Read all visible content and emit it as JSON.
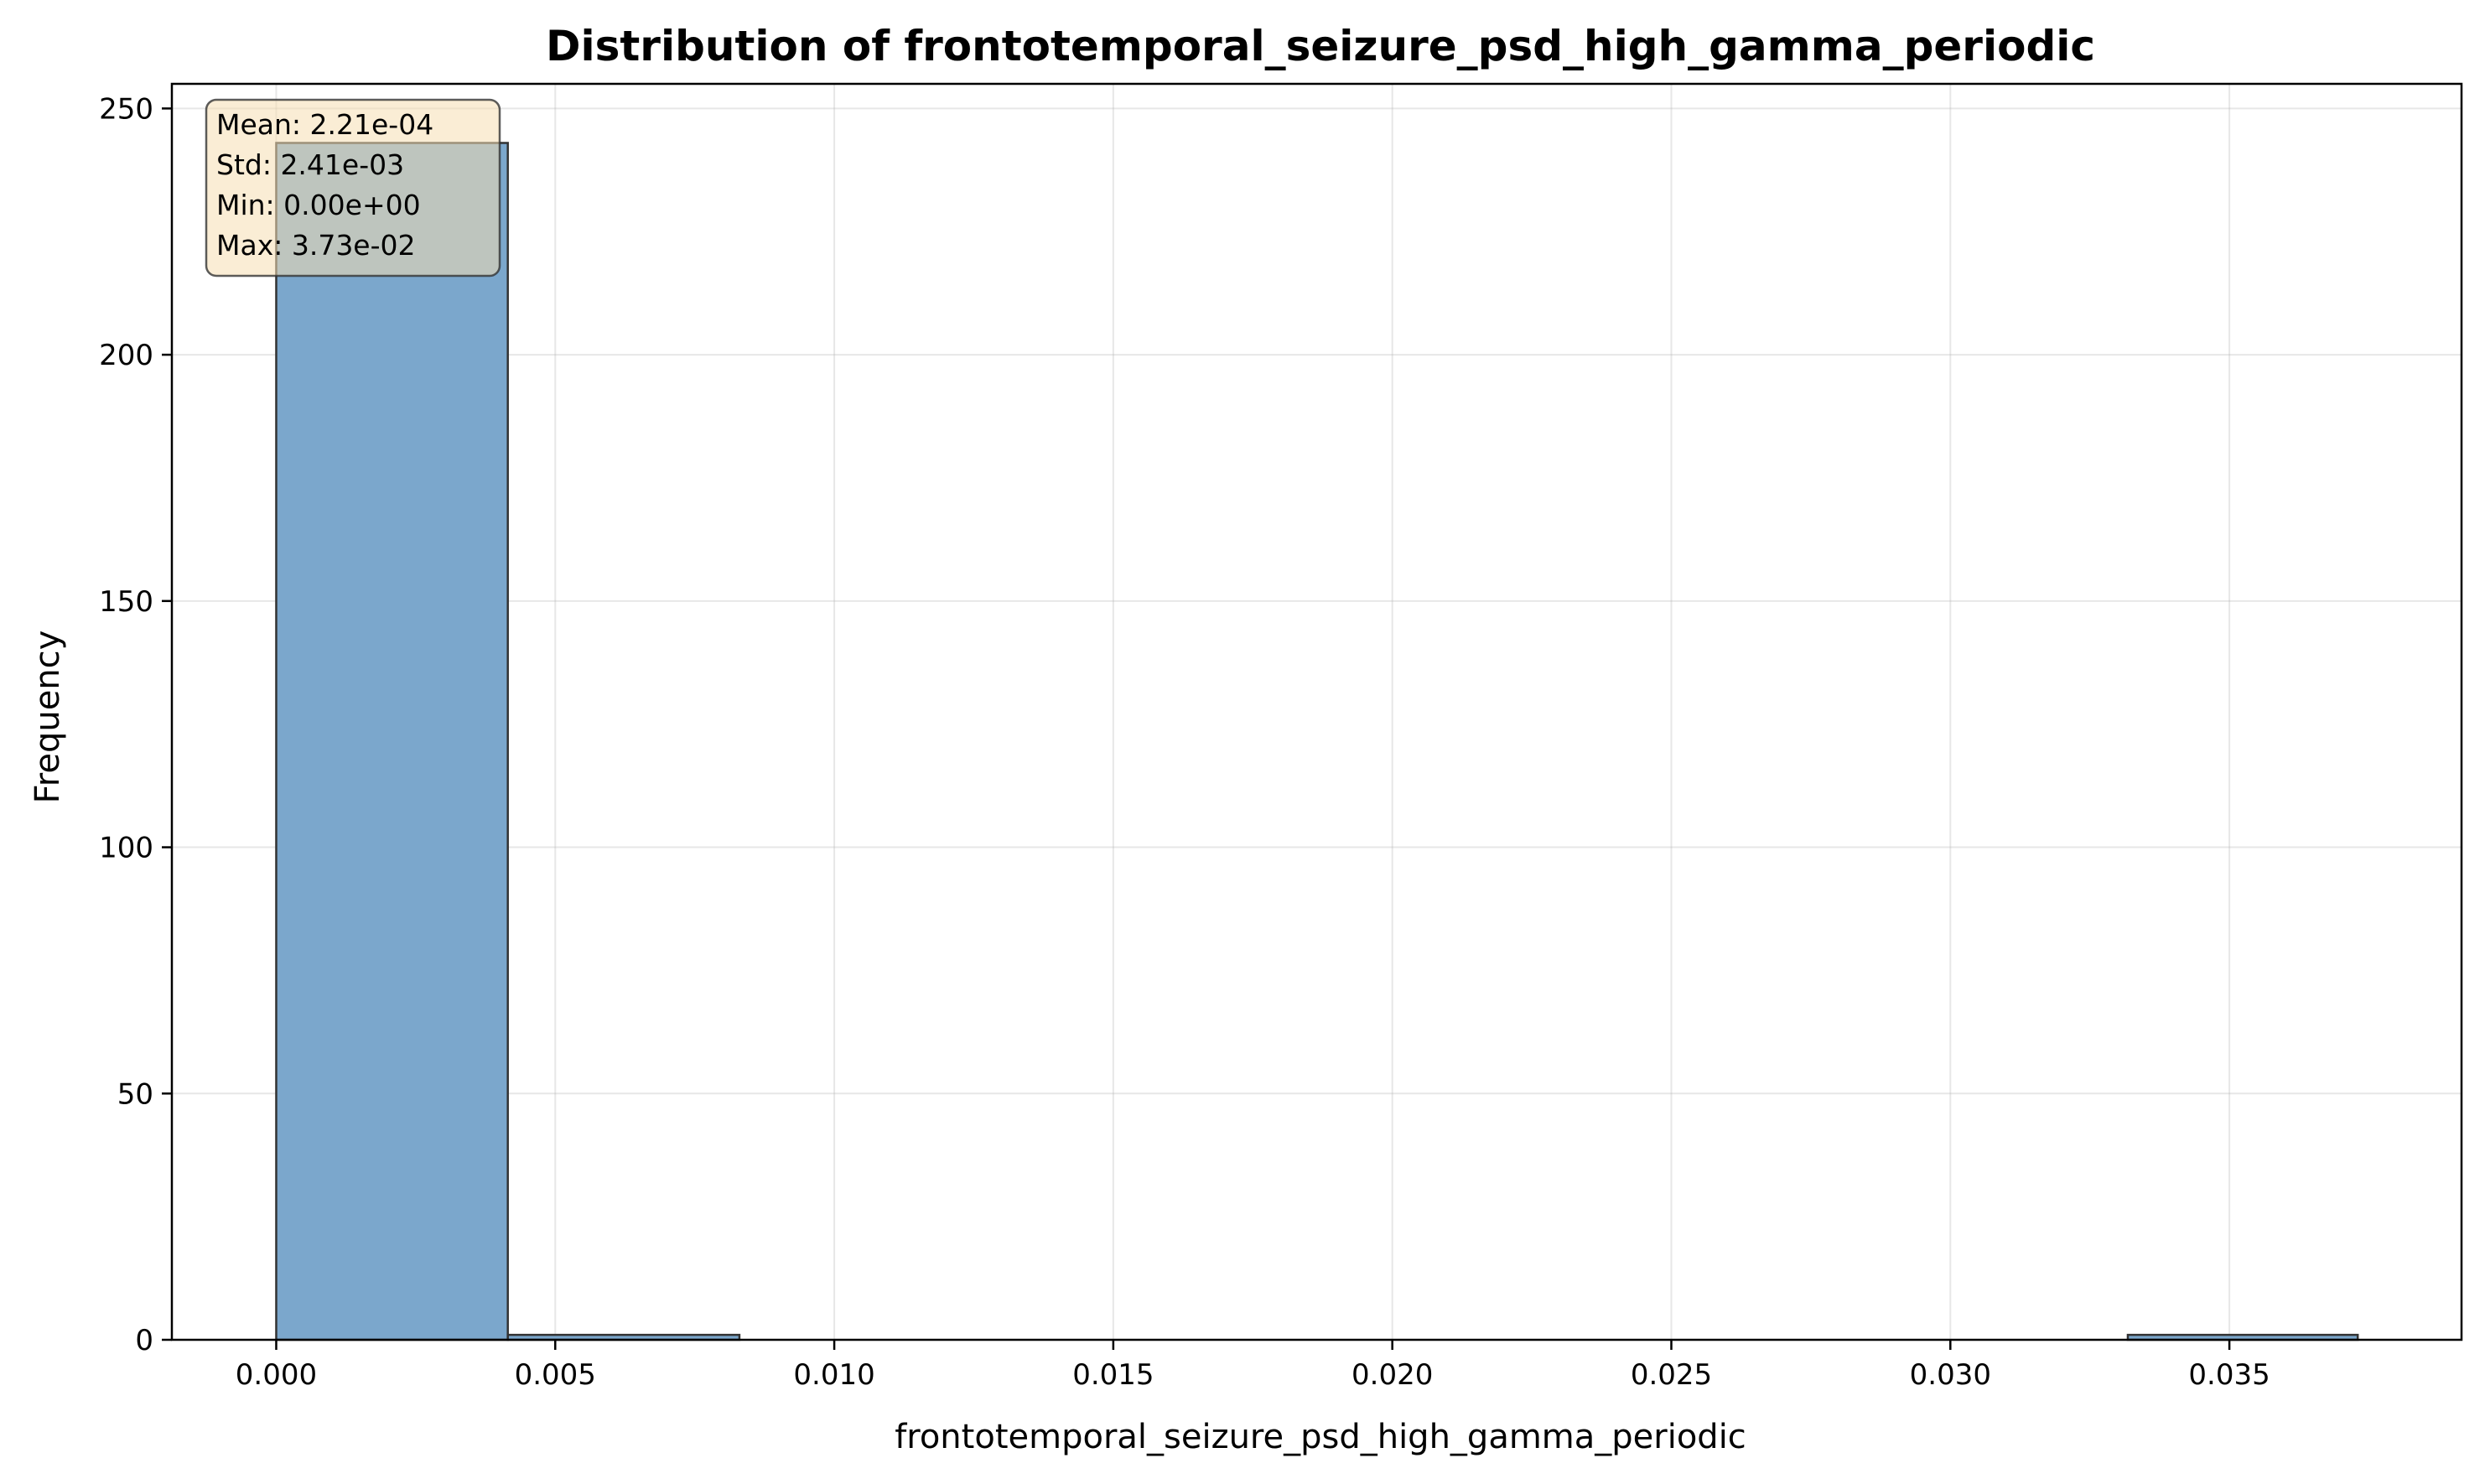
{
  "chart_data": {
    "type": "bar",
    "title": "Distribution of frontotemporal_seizure_psd_high_gamma_periodic",
    "xlabel": "frontotemporal_seizure_psd_high_gamma_periodic",
    "ylabel": "Frequency",
    "xlim": [
      -0.00187,
      0.03916
    ],
    "ylim": [
      0,
      255
    ],
    "xticks": [
      0.0,
      0.005,
      0.01,
      0.015,
      0.02,
      0.025,
      0.03,
      0.035
    ],
    "xtick_labels": [
      "0.000",
      "0.005",
      "0.010",
      "0.015",
      "0.020",
      "0.025",
      "0.030",
      "0.035"
    ],
    "yticks": [
      0,
      50,
      100,
      150,
      200,
      250
    ],
    "ytick_labels": [
      "0",
      "50",
      "100",
      "150",
      "200",
      "250"
    ],
    "bins": [
      {
        "x0": 0.0,
        "x1": 0.00415,
        "count": 243
      },
      {
        "x0": 0.00415,
        "x1": 0.0083,
        "count": 1
      },
      {
        "x0": 0.0083,
        "x1": 0.01244,
        "count": 0
      },
      {
        "x0": 0.01244,
        "x1": 0.01659,
        "count": 0
      },
      {
        "x0": 0.01659,
        "x1": 0.02074,
        "count": 0
      },
      {
        "x0": 0.02074,
        "x1": 0.02489,
        "count": 0
      },
      {
        "x0": 0.02489,
        "x1": 0.02903,
        "count": 0
      },
      {
        "x0": 0.02903,
        "x1": 0.03318,
        "count": 0
      },
      {
        "x0": 0.03318,
        "x1": 0.0373,
        "count": 1
      }
    ],
    "grid": true,
    "bar_color": "#7ba7cc",
    "bar_edge_color": "#333333",
    "stats": {
      "mean": "Mean: 2.21e-04",
      "std": "Std: 2.41e-03",
      "min": "Min: 0.00e+00",
      "max": "Max: 3.73e-02"
    },
    "stats_box_color": "#f5deb3"
  }
}
